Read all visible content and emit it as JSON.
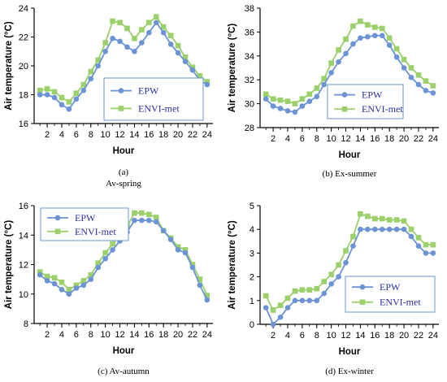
{
  "chart_data": [
    {
      "type": "line",
      "xlabel": "Hour",
      "ylabel": "Air temperature (°C)",
      "caption_lines": [
        "(a)",
        "Av-spring"
      ],
      "x": [
        1,
        2,
        3,
        4,
        5,
        6,
        7,
        8,
        9,
        10,
        11,
        12,
        13,
        14,
        15,
        16,
        17,
        18,
        19,
        20,
        21,
        22,
        23,
        24
      ],
      "xticks": [
        "2",
        "4",
        "6",
        "8",
        "10",
        "12",
        "14",
        "16",
        "18",
        "20",
        "22",
        "24"
      ],
      "ylim": [
        16,
        24
      ],
      "yticks": [
        "16",
        "18",
        "20",
        "22",
        "24"
      ],
      "legend_position": "right-middle",
      "series": [
        {
          "name": "EPW",
          "color": "#6b93d6",
          "marker": "circle",
          "values": [
            18.0,
            18.0,
            17.8,
            17.3,
            17.0,
            17.7,
            18.3,
            19.1,
            20.0,
            21.0,
            21.9,
            21.7,
            21.3,
            21.0,
            21.6,
            22.3,
            23.0,
            22.3,
            21.5,
            20.9,
            20.3,
            19.7,
            19.0,
            18.7
          ]
        },
        {
          "name": "ENVI-met",
          "color": "#9bd06a",
          "marker": "square",
          "values": [
            18.3,
            18.4,
            18.2,
            17.8,
            17.5,
            18.1,
            18.7,
            19.6,
            20.4,
            21.6,
            23.1,
            23.0,
            22.6,
            21.9,
            22.5,
            23.0,
            23.4,
            22.7,
            22.1,
            21.4,
            20.6,
            19.9,
            19.3,
            18.9
          ]
        }
      ]
    },
    {
      "type": "line",
      "xlabel": "Hour",
      "ylabel": "Air temperature (°C)",
      "caption_lines": [
        "(b) Ex-summer"
      ],
      "x": [
        1,
        2,
        3,
        4,
        5,
        6,
        7,
        8,
        9,
        10,
        11,
        12,
        13,
        14,
        15,
        16,
        17,
        18,
        19,
        20,
        21,
        22,
        23,
        24
      ],
      "xticks": [
        "2",
        "4",
        "6",
        "8",
        "10",
        "12",
        "14",
        "16",
        "18",
        "20",
        "22",
        "24"
      ],
      "ylim": [
        28,
        38
      ],
      "yticks": [
        "28",
        "30",
        "32",
        "34",
        "36",
        "38"
      ],
      "legend_position": "bottom-center",
      "series": [
        {
          "name": "EPW",
          "color": "#6b93d6",
          "marker": "circle",
          "values": [
            30.4,
            29.8,
            29.6,
            29.4,
            29.3,
            29.8,
            30.2,
            30.6,
            31.6,
            32.6,
            33.5,
            34.2,
            35.0,
            35.5,
            35.6,
            35.7,
            35.7,
            34.9,
            33.9,
            33.0,
            32.2,
            31.6,
            31.1,
            30.9
          ]
        },
        {
          "name": "ENVI-met",
          "color": "#9bd06a",
          "marker": "square",
          "values": [
            30.8,
            30.4,
            30.3,
            30.2,
            30.0,
            30.4,
            30.8,
            31.3,
            32.1,
            33.4,
            34.5,
            35.4,
            36.5,
            36.9,
            36.6,
            36.4,
            36.3,
            35.5,
            34.6,
            33.7,
            33.0,
            32.4,
            31.9,
            31.5
          ]
        }
      ]
    },
    {
      "type": "line",
      "xlabel": "Hour",
      "ylabel": "Air temperature (°C)",
      "caption_lines": [
        "(c) Av-autumn"
      ],
      "x": [
        1,
        2,
        3,
        4,
        5,
        6,
        7,
        8,
        9,
        10,
        11,
        12,
        13,
        14,
        15,
        16,
        17,
        18,
        19,
        20,
        21,
        22,
        23,
        24
      ],
      "xticks": [
        "2",
        "4",
        "6",
        "8",
        "10",
        "12",
        "14",
        "16",
        "18",
        "20",
        "22",
        "24"
      ],
      "ylim": [
        8,
        16
      ],
      "yticks": [
        "8",
        "10",
        "12",
        "14",
        "16"
      ],
      "legend_position": "top-left",
      "series": [
        {
          "name": "EPW",
          "color": "#6b93d6",
          "marker": "circle",
          "values": [
            11.3,
            10.9,
            10.7,
            10.3,
            10.0,
            10.4,
            10.6,
            11.0,
            11.8,
            12.4,
            13.0,
            13.6,
            14.2,
            15.0,
            15.0,
            15.0,
            14.9,
            14.3,
            13.7,
            13.0,
            12.8,
            11.8,
            10.6,
            9.6
          ]
        },
        {
          "name": "ENVI-met",
          "color": "#9bd06a",
          "marker": "square",
          "values": [
            11.5,
            11.2,
            11.1,
            10.8,
            10.3,
            10.6,
            10.9,
            11.3,
            12.1,
            12.8,
            13.4,
            14.0,
            14.6,
            15.5,
            15.5,
            15.4,
            15.2,
            14.3,
            13.8,
            13.2,
            13.0,
            12.0,
            11.0,
            9.9
          ]
        }
      ]
    },
    {
      "type": "line",
      "xlabel": "Hour",
      "ylabel": "Air temperature (°C)",
      "caption_lines": [
        "(d) Ex-winter"
      ],
      "x": [
        1,
        2,
        3,
        4,
        5,
        6,
        7,
        8,
        9,
        10,
        11,
        12,
        13,
        14,
        15,
        16,
        17,
        18,
        19,
        20,
        21,
        22,
        23,
        24
      ],
      "xticks": [
        "2",
        "4",
        "6",
        "8",
        "10",
        "12",
        "14",
        "16",
        "18",
        "20",
        "22",
        "24"
      ],
      "ylim": [
        0,
        5
      ],
      "yticks": [
        "0",
        "1",
        "2",
        "3",
        "4",
        "5"
      ],
      "legend_position": "bottom-center",
      "series": [
        {
          "name": "EPW",
          "color": "#6b93d6",
          "marker": "circle",
          "values": [
            0.7,
            0.0,
            0.3,
            0.7,
            1.0,
            1.0,
            1.0,
            1.0,
            1.3,
            1.7,
            2.0,
            2.6,
            3.3,
            4.0,
            4.0,
            4.0,
            4.0,
            4.0,
            4.0,
            4.0,
            3.7,
            3.3,
            3.0,
            3.0
          ]
        },
        {
          "name": "ENVI-met",
          "color": "#9bd06a",
          "marker": "square",
          "values": [
            1.2,
            0.6,
            0.8,
            1.1,
            1.4,
            1.45,
            1.45,
            1.5,
            1.8,
            2.1,
            2.5,
            3.1,
            3.7,
            4.65,
            4.55,
            4.45,
            4.45,
            4.4,
            4.4,
            4.35,
            4.0,
            3.65,
            3.35,
            3.35
          ]
        }
      ]
    }
  ]
}
